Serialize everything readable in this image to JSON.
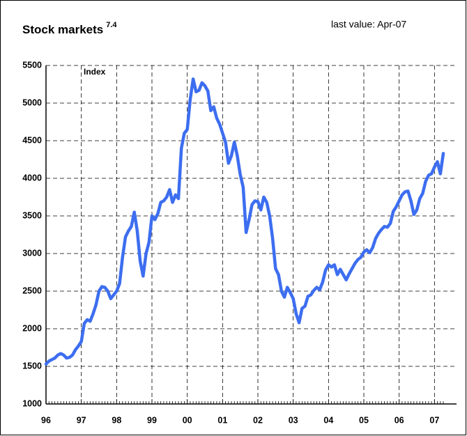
{
  "chart_data": {
    "type": "line",
    "title": "Stock markets",
    "title_superscript": "7.4",
    "subtitle": "last value: Apr-07",
    "y_label": "Index",
    "categories": [
      "96",
      null,
      null,
      null,
      null,
      null,
      null,
      null,
      null,
      null,
      null,
      null,
      "97",
      null,
      null,
      null,
      null,
      null,
      null,
      null,
      null,
      null,
      null,
      null,
      "98",
      null,
      null,
      null,
      null,
      null,
      null,
      null,
      null,
      null,
      null,
      null,
      "99",
      null,
      null,
      null,
      null,
      null,
      null,
      null,
      null,
      null,
      null,
      null,
      "00",
      null,
      null,
      null,
      null,
      null,
      null,
      null,
      null,
      null,
      null,
      null,
      "01",
      null,
      null,
      null,
      null,
      null,
      null,
      null,
      null,
      null,
      null,
      null,
      "02",
      null,
      null,
      null,
      null,
      null,
      null,
      null,
      null,
      null,
      null,
      null,
      "03",
      null,
      null,
      null,
      null,
      null,
      null,
      null,
      null,
      null,
      null,
      null,
      "04",
      null,
      null,
      null,
      null,
      null,
      null,
      null,
      null,
      null,
      null,
      null,
      "05",
      null,
      null,
      null,
      null,
      null,
      null,
      null,
      null,
      null,
      null,
      null,
      "06",
      null,
      null,
      null,
      null,
      null,
      null,
      null,
      null,
      null,
      null,
      null,
      "07",
      null,
      null,
      null
    ],
    "series": [
      {
        "name": "Stock markets",
        "color": "#3d6ef0",
        "values": [
          1530,
          1570,
          1590,
          1610,
          1650,
          1670,
          1650,
          1610,
          1620,
          1650,
          1720,
          1770,
          1830,
          2070,
          2120,
          2100,
          2200,
          2320,
          2500,
          2560,
          2550,
          2500,
          2400,
          2450,
          2500,
          2600,
          2950,
          3220,
          3300,
          3360,
          3550,
          3300,
          2900,
          2700,
          3000,
          3150,
          3500,
          3450,
          3530,
          3680,
          3700,
          3750,
          3850,
          3680,
          3780,
          3730,
          4400,
          4600,
          4650,
          5050,
          5320,
          5150,
          5170,
          5270,
          5230,
          5160,
          4900,
          4950,
          4800,
          4720,
          4600,
          4480,
          4200,
          4300,
          4480,
          4300,
          4050,
          3880,
          3280,
          3450,
          3650,
          3700,
          3690,
          3580,
          3750,
          3680,
          3500,
          3200,
          2800,
          2720,
          2500,
          2420,
          2550,
          2480,
          2400,
          2200,
          2080,
          2270,
          2300,
          2430,
          2450,
          2510,
          2550,
          2520,
          2620,
          2780,
          2850,
          2820,
          2850,
          2720,
          2790,
          2720,
          2650,
          2730,
          2800,
          2870,
          2920,
          2950,
          3020,
          3050,
          3010,
          3080,
          3200,
          3270,
          3320,
          3360,
          3350,
          3400,
          3560,
          3620,
          3700,
          3780,
          3820,
          3830,
          3700,
          3520,
          3580,
          3730,
          3800,
          3960,
          4040,
          4060,
          4150,
          4220,
          4060,
          4330
        ]
      }
    ],
    "ylim": [
      1000,
      5500
    ],
    "yticks": [
      1000,
      1500,
      2000,
      2500,
      3000,
      3500,
      4000,
      4500,
      5000,
      5500
    ],
    "grid": true
  }
}
